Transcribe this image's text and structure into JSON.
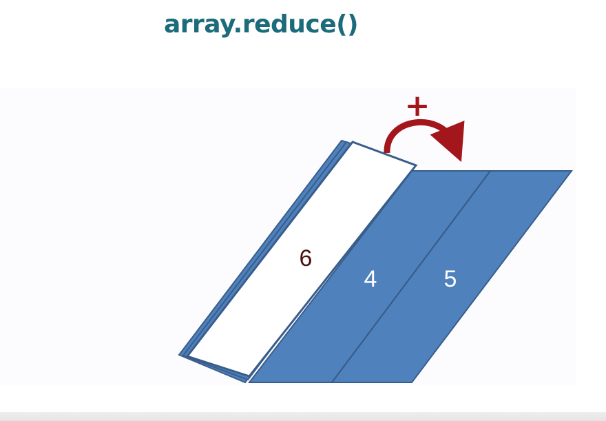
{
  "title": "array.reduce()",
  "diagram": {
    "operator": "+",
    "cells": [
      {
        "id": "folded",
        "label": "6"
      },
      {
        "id": "middle",
        "label": "4"
      },
      {
        "id": "right",
        "label": "5"
      }
    ],
    "colors": {
      "title": "#1b6b7a",
      "cell_fill": "#4f81bd",
      "cell_stroke": "#385d8a",
      "folded_fill": "#ffffff",
      "folded_label": "#4a1010",
      "arrow": "#a3161b",
      "cell_label": "#ffffff"
    },
    "icons": {
      "fold_arrow": "curved-arrow-icon",
      "operator": "plus-icon"
    }
  }
}
